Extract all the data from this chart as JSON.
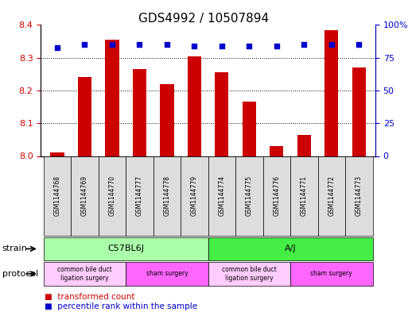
{
  "title": "GDS4992 / 10507894",
  "samples": [
    "GSM1144768",
    "GSM1144769",
    "GSM1144770",
    "GSM1144777",
    "GSM1144778",
    "GSM1144779",
    "GSM1144774",
    "GSM1144775",
    "GSM1144776",
    "GSM1144771",
    "GSM1144772",
    "GSM1144773"
  ],
  "transformed_counts": [
    8.01,
    8.24,
    8.355,
    8.265,
    8.22,
    8.305,
    8.255,
    8.165,
    8.03,
    8.065,
    8.385,
    8.27
  ],
  "percentile_ranks": [
    83,
    85,
    85,
    85,
    85,
    84,
    84,
    84,
    84,
    85,
    85,
    85
  ],
  "ylim_left": [
    8.0,
    8.4
  ],
  "ylim_right": [
    0,
    100
  ],
  "yticks_left": [
    8.0,
    8.1,
    8.2,
    8.3,
    8.4
  ],
  "yticks_right": [
    0,
    25,
    50,
    75,
    100
  ],
  "ytick_labels_right": [
    "0",
    "25",
    "50",
    "75",
    "100%"
  ],
  "bar_color": "#cc0000",
  "dot_color": "#0000cc",
  "strain_groups": [
    {
      "label": "C57BL6J",
      "start": 0,
      "end": 5,
      "color": "#aaffaa"
    },
    {
      "label": "A/J",
      "start": 6,
      "end": 11,
      "color": "#44ee44"
    }
  ],
  "protocol_groups": [
    {
      "label": "common bile duct\nligation surgery",
      "start": 0,
      "end": 2,
      "color": "#ffccff"
    },
    {
      "label": "sham surgery",
      "start": 3,
      "end": 5,
      "color": "#ff66ff"
    },
    {
      "label": "common bile duct\nligation surgery",
      "start": 6,
      "end": 8,
      "color": "#ffccff"
    },
    {
      "label": "sham surgery",
      "start": 9,
      "end": 11,
      "color": "#ff66ff"
    }
  ],
  "legend_items": [
    {
      "label": "transformed count",
      "color": "#cc0000"
    },
    {
      "label": "percentile rank within the sample",
      "color": "#0000cc"
    }
  ],
  "strain_label": "strain",
  "protocol_label": "protocol",
  "background_color": "#ffffff",
  "tick_color_left": "#cc0000",
  "tick_color_right": "#0000cc"
}
